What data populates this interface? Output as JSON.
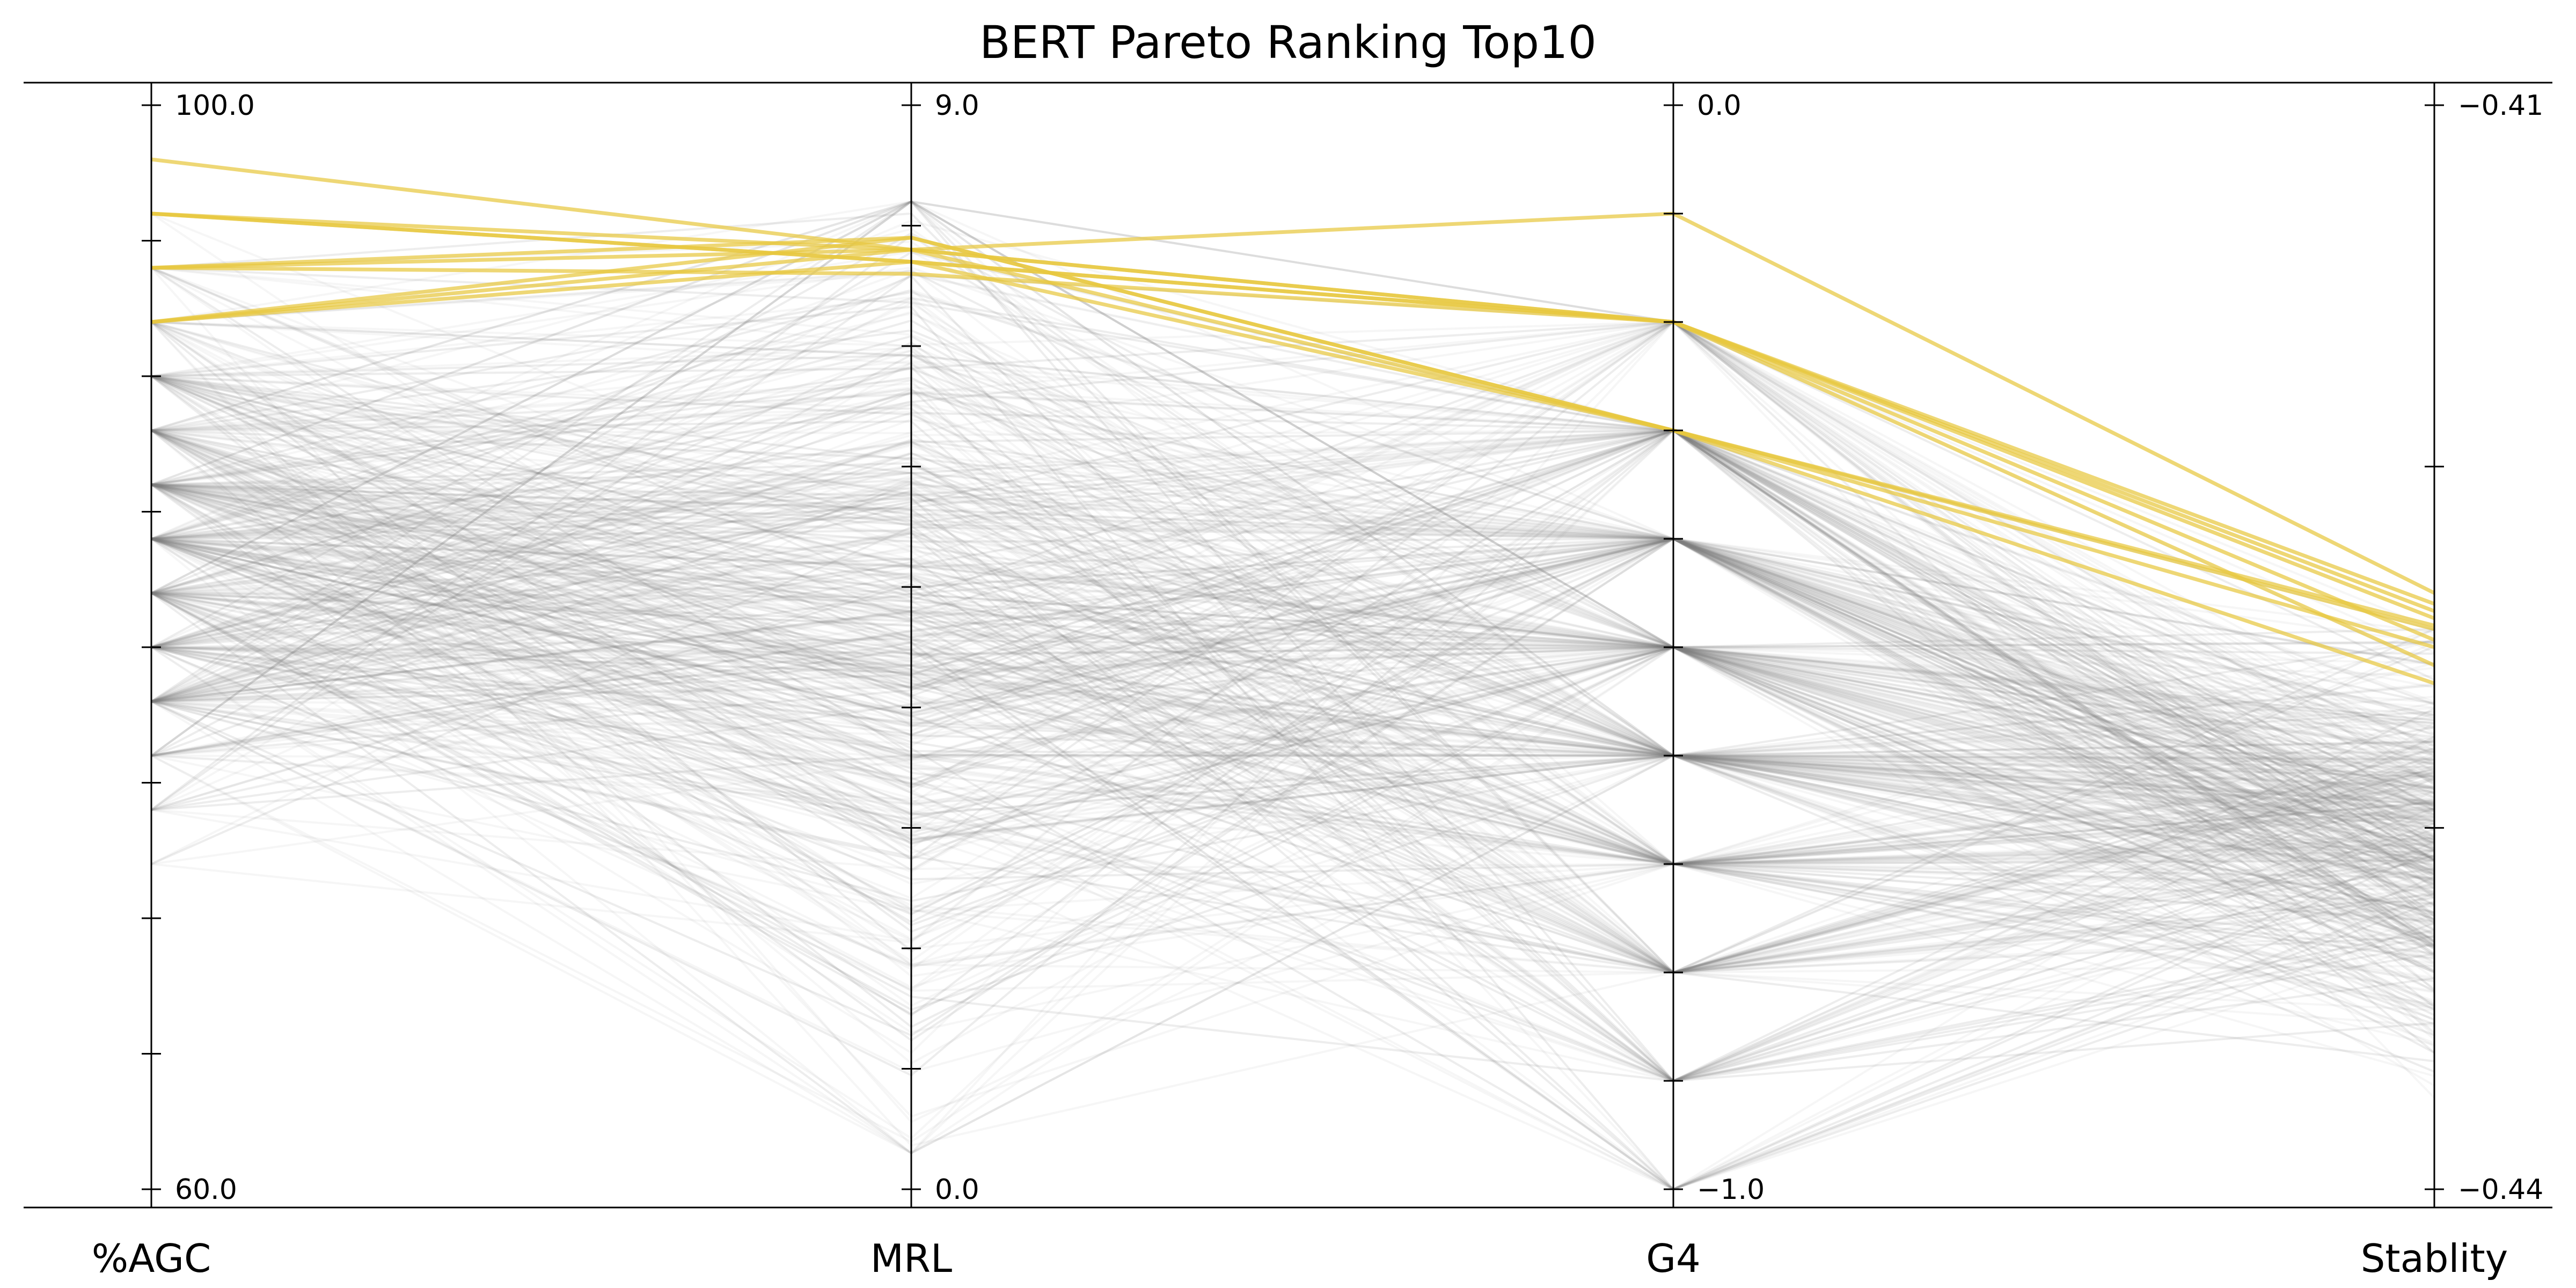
{
  "chart_data": {
    "type": "parallel-coordinates",
    "title": "BERT Pareto Ranking Top10",
    "axes": [
      {
        "name": "%AGC",
        "min": 60.0,
        "max": 100.0,
        "min_label": "60.0",
        "max_label": "100.0",
        "ticks": [
          60,
          65,
          70,
          75,
          80,
          85,
          90,
          95,
          100
        ]
      },
      {
        "name": "MRL",
        "min": 0.0,
        "max": 9.0,
        "min_label": "0.0",
        "max_label": "9.0",
        "ticks": [
          0,
          1,
          2,
          3,
          4,
          5,
          6,
          7,
          8,
          9
        ]
      },
      {
        "name": "G4",
        "min": -1.0,
        "max": 0.0,
        "min_label": "−1.0",
        "max_label": "0.0",
        "ticks": [
          -1.0,
          -0.9,
          -0.8,
          -0.7,
          -0.6,
          -0.5,
          -0.4,
          -0.3,
          -0.2,
          -0.1,
          0.0
        ]
      },
      {
        "name": "Stablity",
        "min": -0.44,
        "max": -0.41,
        "min_label": "−0.44",
        "max_label": "−0.41",
        "ticks": [
          -0.44,
          -0.43,
          -0.42,
          -0.41
        ]
      }
    ],
    "colors": {
      "highlight": "#e8c840",
      "background": "#808080"
    },
    "highlighted": [
      [
        98.0,
        7.8,
        -0.1,
        -0.4235
      ],
      [
        96.0,
        7.7,
        -0.2,
        -0.4238
      ],
      [
        96.0,
        7.8,
        -0.2,
        -0.4242
      ],
      [
        94.0,
        7.6,
        -0.2,
        -0.424
      ],
      [
        94.0,
        7.9,
        -0.3,
        -0.4245
      ],
      [
        92.0,
        7.7,
        -0.3,
        -0.425
      ],
      [
        92.0,
        7.8,
        -0.2,
        -0.4255
      ],
      [
        94.0,
        7.8,
        -0.3,
        -0.426
      ],
      [
        96.0,
        7.7,
        -0.2,
        -0.4248
      ],
      [
        92.0,
        7.9,
        -0.3,
        -0.4244
      ]
    ],
    "background_count": 480,
    "xlabel": "",
    "ylabel": ""
  }
}
